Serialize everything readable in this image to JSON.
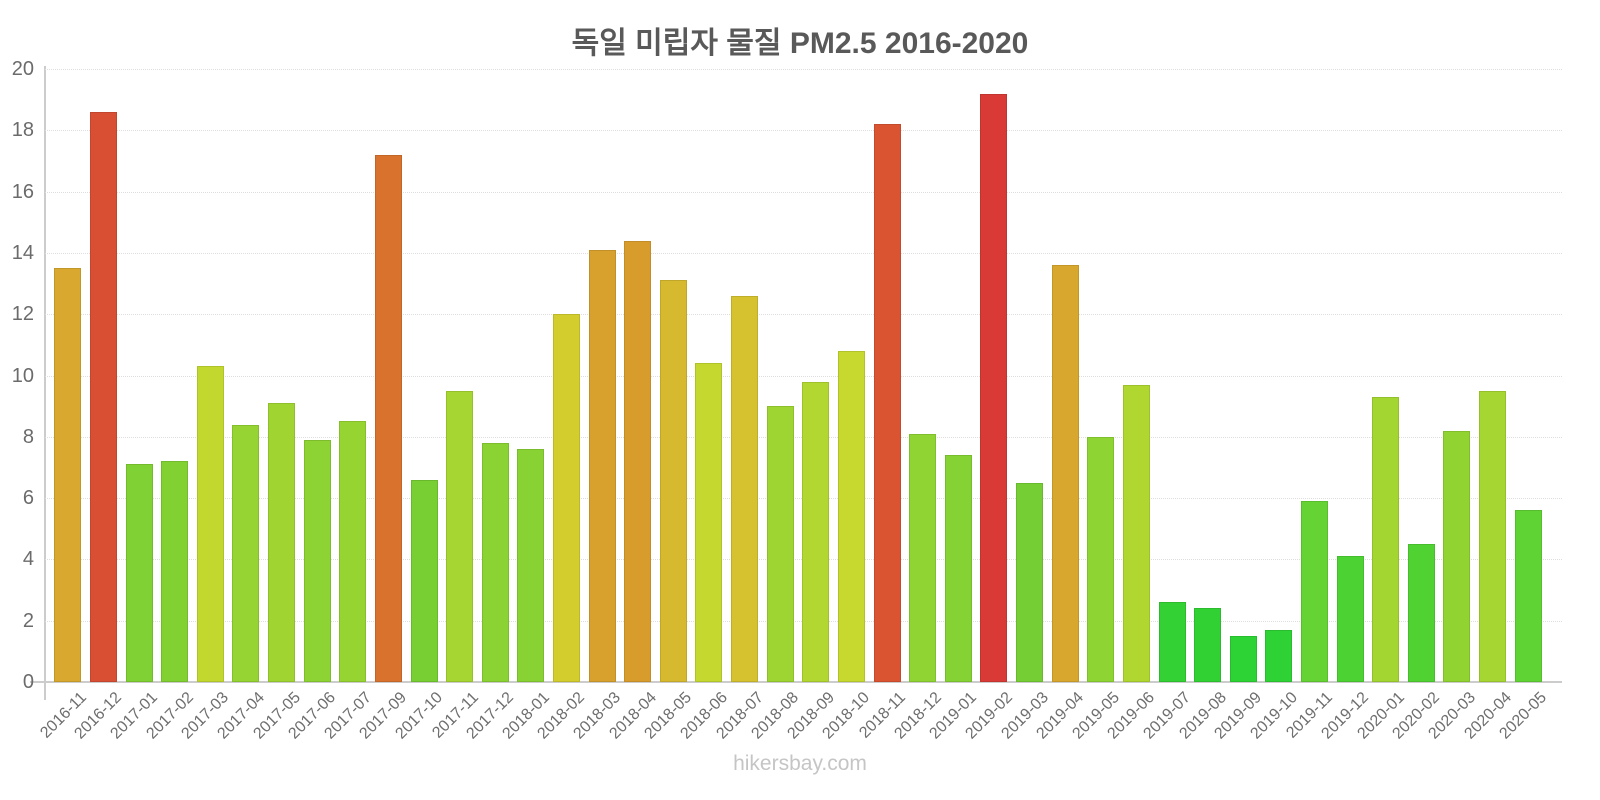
{
  "title": "독일 미립자 물질 PM2.5 2016-2020",
  "footer": "hikersbay.com",
  "chart_data": {
    "type": "bar",
    "title": "독일 미립자 물질 PM2.5 2016-2020",
    "xlabel": "",
    "ylabel": "",
    "ylim": [
      0,
      20
    ],
    "yticks": [
      0,
      2,
      4,
      6,
      8,
      10,
      12,
      14,
      16,
      18,
      20
    ],
    "grid": "horizontal-dotted",
    "legend": "none",
    "categories": [
      "2016-11",
      "2016-12",
      "2017-01",
      "2017-02",
      "2017-03",
      "2017-04",
      "2017-05",
      "2017-06",
      "2017-07",
      "2017-09",
      "2017-10",
      "2017-11",
      "2017-12",
      "2018-01",
      "2018-02",
      "2018-03",
      "2018-04",
      "2018-05",
      "2018-06",
      "2018-07",
      "2018-08",
      "2018-09",
      "2018-10",
      "2018-11",
      "2018-12",
      "2019-01",
      "2019-02",
      "2019-03",
      "2019-04",
      "2019-05",
      "2019-06",
      "2019-07",
      "2019-08",
      "2019-09",
      "2019-10",
      "2019-11",
      "2019-12",
      "2020-01",
      "2020-02",
      "2020-03",
      "2020-04",
      "2020-05"
    ],
    "values": [
      13.5,
      18.6,
      7.1,
      7.2,
      10.3,
      8.4,
      9.1,
      7.9,
      8.5,
      17.2,
      6.6,
      9.5,
      7.8,
      7.6,
      12,
      14.1,
      14.4,
      13.1,
      10.4,
      12.6,
      9,
      9.8,
      10.8,
      18.2,
      8.1,
      7.4,
      19.2,
      6.5,
      13.6,
      8,
      9.7,
      2.6,
      2.4,
      1.5,
      1.7,
      5.9,
      4.1,
      9.3,
      4.5,
      8.2,
      9.5,
      5.6
    ],
    "bar_colors": [
      "#d8a92e",
      "#d94f33",
      "#80d133",
      "#81d133",
      "#c3d82f",
      "#95d432",
      "#a0d531",
      "#8cd333",
      "#96d432",
      "#d9722d",
      "#77cf33",
      "#a6d631",
      "#8bd333",
      "#88d233",
      "#d3cd2e",
      "#d8a12d",
      "#d89c2d",
      "#d6b92e",
      "#c4d82f",
      "#d5c22e",
      "#9ed532",
      "#b1d730",
      "#c7d92f",
      "#da5431",
      "#8fd433",
      "#84d233",
      "#d93a35",
      "#75cf34",
      "#d8a82e",
      "#8ed433",
      "#afd730",
      "#33d133",
      "#31d134",
      "#2dd235",
      "#2ed235",
      "#65d334",
      "#4cd233",
      "#a3d631",
      "#50d233",
      "#91d432",
      "#a6d631",
      "#60d334"
    ]
  },
  "style": {
    "axis_color": "#cccccc",
    "gridline_color": "#dedede",
    "title_color": "#595959",
    "tick_label_color": "#6e6e6e",
    "footer_color": "#c5c5c5"
  }
}
